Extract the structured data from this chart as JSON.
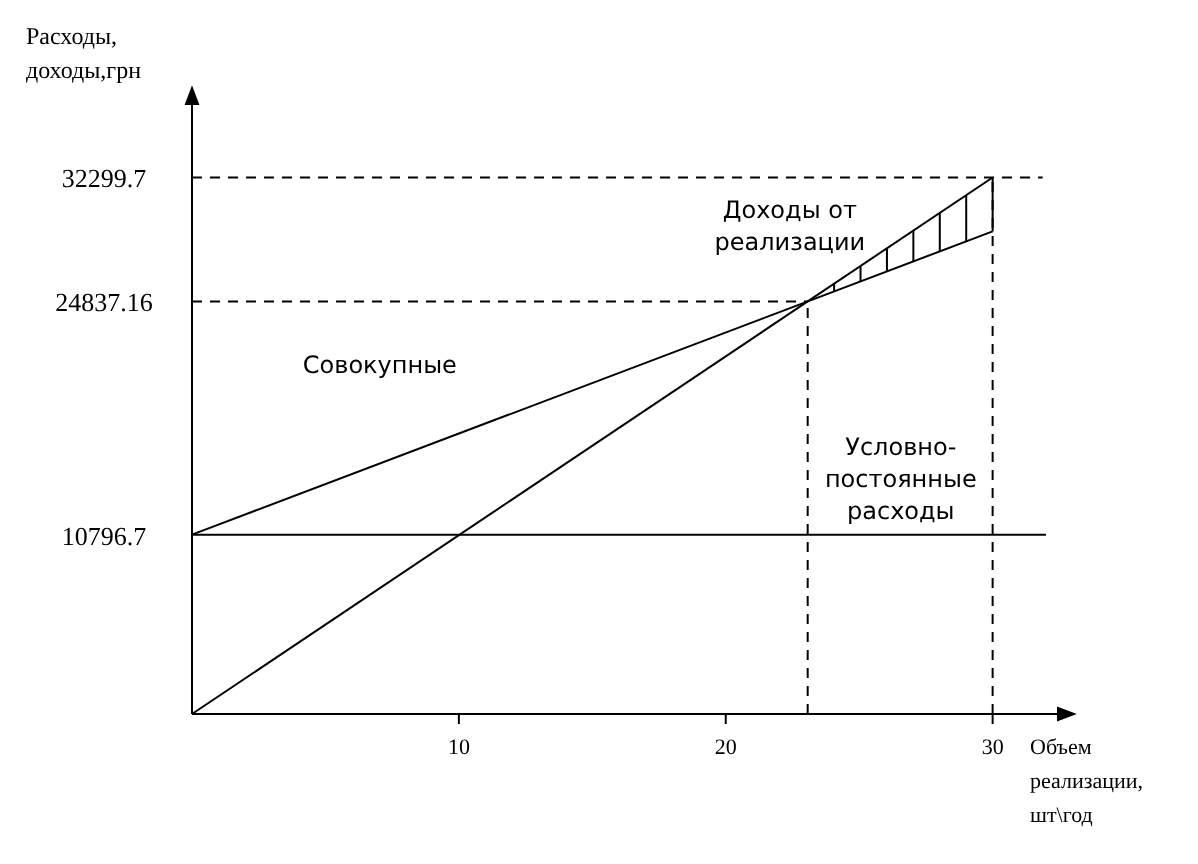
{
  "chart_data": {
    "type": "line",
    "xlabel": "Объем реализации, шт\\год",
    "ylabel": "Расходы, доходы,грн",
    "xlim": [
      0,
      32
    ],
    "ylim": [
      0,
      36000
    ],
    "xticks": [
      10,
      20,
      30
    ],
    "yticks": [
      10796.7,
      24837.16,
      32299.7
    ],
    "grid": false,
    "marker": "none",
    "line_style": "solid",
    "series": [
      {
        "name": "Доходы от реализации",
        "color": "#000000",
        "x": [
          0,
          30
        ],
        "values": [
          0,
          32299.7
        ]
      },
      {
        "name": "Совокупные",
        "color": "#000000",
        "x": [
          0,
          30
        ],
        "values": [
          10796.7,
          29055
        ]
      },
      {
        "name": "Условно-постоянные расходы",
        "color": "#000000",
        "x": [
          0,
          32
        ],
        "values": [
          10796.7,
          10796.7
        ]
      }
    ],
    "ref_lines": [
      {
        "axis": "y",
        "value": 32299.7,
        "line_style": "dashed",
        "color": "#000000"
      },
      {
        "axis": "y",
        "value": 24837.16,
        "line_style": "dashed",
        "color": "#000000"
      },
      {
        "axis": "x",
        "value": 23.07,
        "line_style": "dashed",
        "color": "#000000"
      },
      {
        "axis": "x",
        "value": 30,
        "line_style": "dashed",
        "color": "#000000"
      }
    ]
  }
}
